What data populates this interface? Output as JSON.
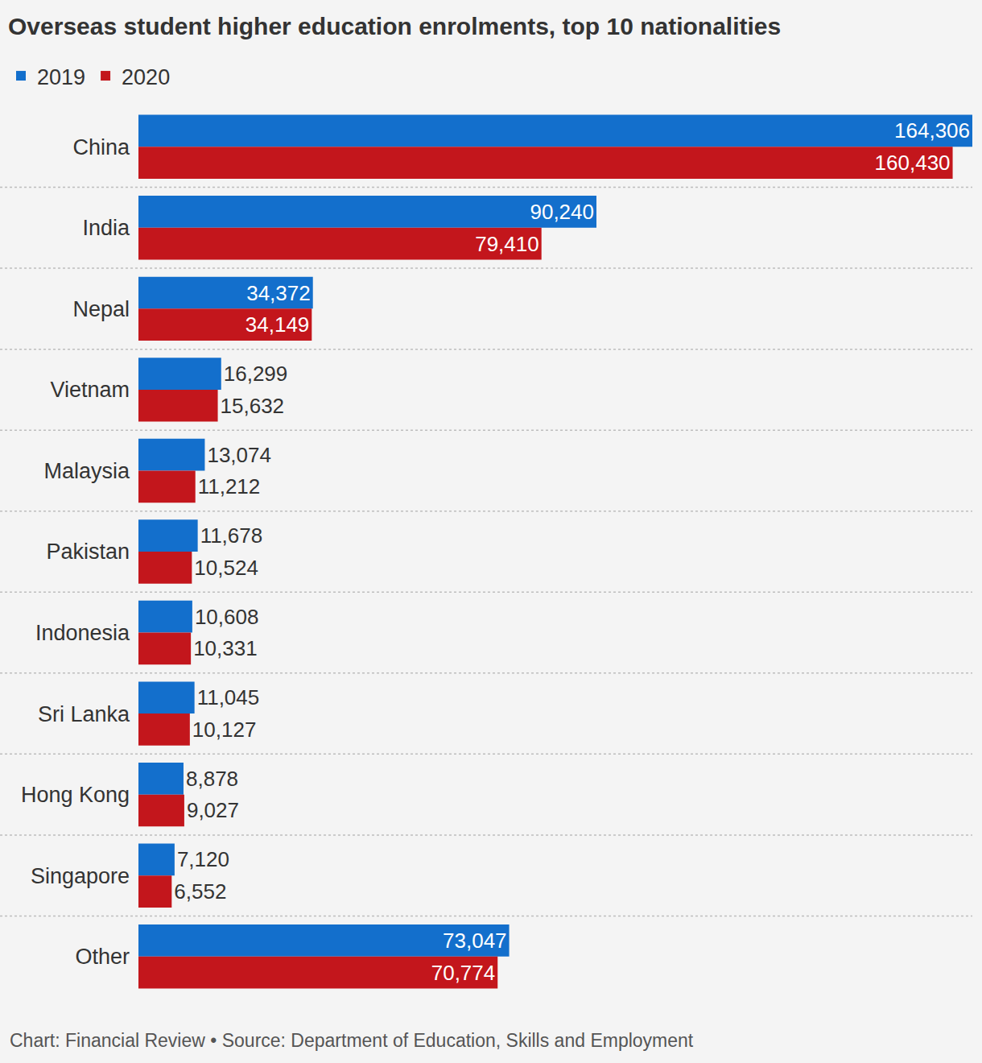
{
  "chart_data": {
    "type": "bar",
    "orientation": "horizontal",
    "title": "Overseas student higher education enrolments, top 10 nationalities",
    "caption": "Chart: Financial Review • Source: Department of Education, Skills and Employment",
    "categories": [
      "China",
      "India",
      "Nepal",
      "Vietnam",
      "Malaysia",
      "Pakistan",
      "Indonesia",
      "Sri Lanka",
      "Hong Kong",
      "Singapore",
      "Other"
    ],
    "series": [
      {
        "name": "2019",
        "color": "#136fcc",
        "values": [
          164306,
          90240,
          34372,
          16299,
          13074,
          11678,
          10608,
          11045,
          8878,
          7120,
          73047
        ],
        "value_labels": [
          "164,306",
          "90,240",
          "34,372",
          "16,299",
          "13,074",
          "11,678",
          "10,608",
          "11,045",
          "8,878",
          "7,120",
          "73,047"
        ]
      },
      {
        "name": "2020",
        "color": "#c3161c",
        "values": [
          160430,
          79410,
          34149,
          15632,
          11212,
          10524,
          10331,
          10127,
          9027,
          6552,
          70774
        ],
        "value_labels": [
          "160,430",
          "79,410",
          "34,149",
          "15,632",
          "11,212",
          "10,524",
          "10,331",
          "10,127",
          "9,027",
          "6,552",
          "70,774"
        ]
      }
    ],
    "xlim": [
      0,
      164306
    ],
    "xticks": [],
    "tick_labels": "y",
    "grid": false,
    "legend": "top left",
    "data_labels": true
  }
}
